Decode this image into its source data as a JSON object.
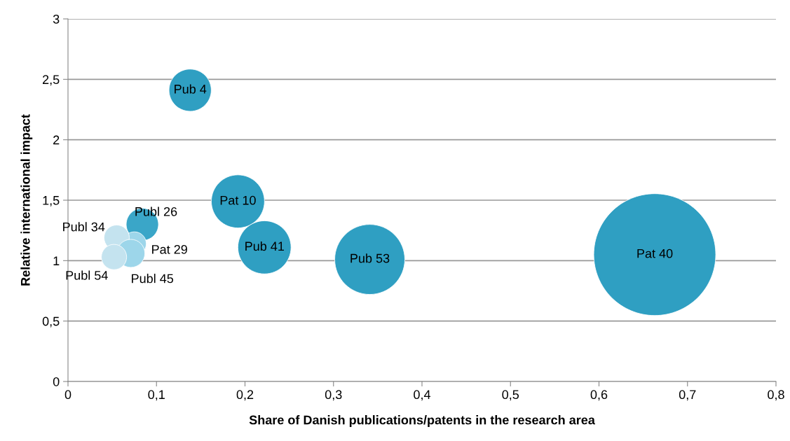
{
  "chart_data": {
    "type": "bubble",
    "xlabel": "Share of Danish publications/patents in the research area",
    "ylabel": "Relative international impact",
    "x": [
      0.138,
      0.192,
      0.222,
      0.341,
      0.663,
      0.084,
      0.075,
      0.055,
      0.071,
      0.052
    ],
    "values": [
      2.41,
      1.49,
      1.11,
      1.01,
      1.05,
      1.3,
      1.14,
      1.19,
      1.06,
      1.03
    ],
    "sizes": [
      0.12,
      0.19,
      0.19,
      0.33,
      1,
      0.07,
      0.038,
      0.043,
      0.053,
      0.043
    ],
    "colors": [
      "#2f9fc2",
      "#2f9fc2",
      "#2f9fc2",
      "#2f9fc2",
      "#2f9fc2",
      "#3aa6c8",
      "#9dd6ea",
      "#c4e3ef",
      "#9dd6ea",
      "#c4e3ef"
    ],
    "annotations": [
      {
        "text": "Pub 4",
        "x": 0.138,
        "y": 2.41
      },
      {
        "text": "Pat 10",
        "x": 0.192,
        "y": 1.49
      },
      {
        "text": "Pub 41",
        "x": 0.222,
        "y": 1.11
      },
      {
        "text": "Pub 53",
        "x": 0.341,
        "y": 1.01
      },
      {
        "text": "Pat 40",
        "x": 0.663,
        "y": 1.05
      },
      {
        "text": "Publ 26",
        "x": 0.084,
        "y": 1.3
      },
      {
        "text": "Pat 29",
        "x": 0.075,
        "y": 1.14
      },
      {
        "text": "Publ 34",
        "x": 0.055,
        "y": 1.19
      },
      {
        "text": "Publ 45",
        "x": 0.071,
        "y": 1.06
      },
      {
        "text": "Publ 54",
        "x": 0.052,
        "y": 1.03
      }
    ],
    "xlim": [
      0,
      0.8
    ],
    "ylim": [
      0,
      3
    ],
    "xticks": [
      0,
      {
        "value": 0.1,
        "label": "0,1"
      },
      {
        "value": 0.2,
        "label": "0,2"
      },
      {
        "value": 0.3,
        "label": "0,3"
      },
      {
        "value": 0.4,
        "label": "0,4"
      },
      {
        "value": 0.5,
        "label": "0,5"
      },
      {
        "value": 0.6,
        "label": "0,6"
      },
      {
        "value": 0.7,
        "label": "0,7"
      },
      {
        "value": 0.8,
        "label": "0,8"
      }
    ],
    "yticks": [
      0,
      {
        "value": 0.5,
        "label": "0,5"
      },
      1,
      {
        "value": 1.5,
        "label": "1,5"
      },
      2,
      {
        "value": 2.5,
        "label": "2,5"
      },
      3
    ],
    "grid": "y"
  }
}
